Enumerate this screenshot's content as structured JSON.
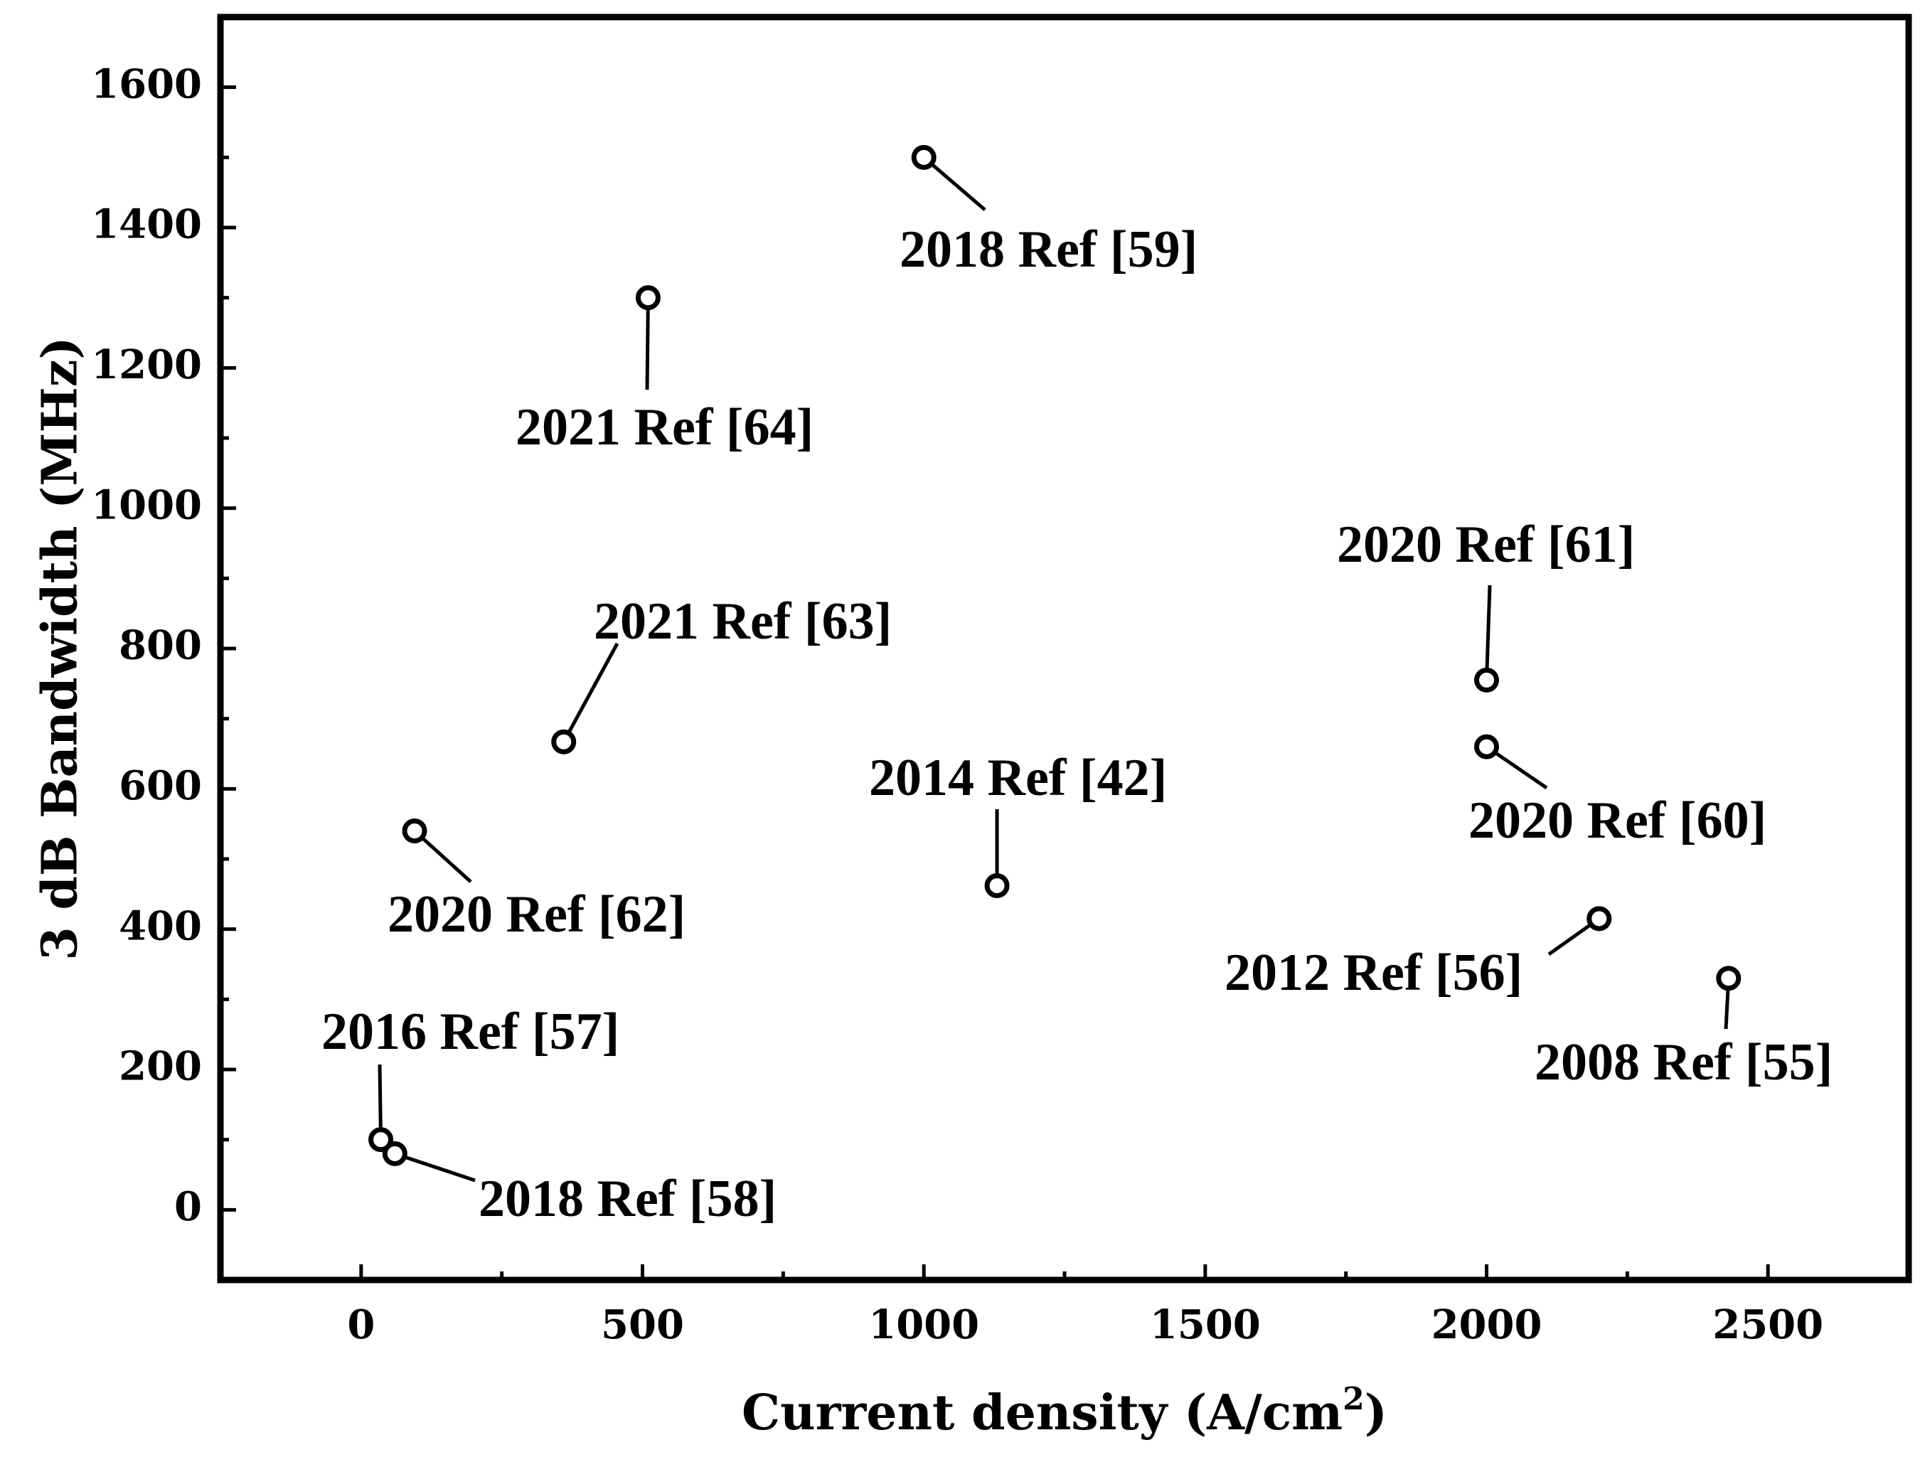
{
  "chart_data": {
    "type": "scatter",
    "title": "",
    "xlabel": "Current density (A/cm",
    "xlabel_superscript": "2",
    "xlabel_suffix": ")",
    "ylabel": "3 dB Bandwidth (MHz)",
    "xlim": [
      -250,
      2750
    ],
    "ylim": [
      -100,
      1700
    ],
    "xticks": [
      0,
      500,
      1000,
      1500,
      2000,
      2500
    ],
    "yticks": [
      0,
      200,
      400,
      600,
      800,
      1000,
      1200,
      1400,
      1600
    ],
    "grid": false,
    "legend": "none",
    "points": [
      {
        "label": "2018 Ref [59]",
        "x": 1000,
        "y": 1500
      },
      {
        "label": "2021 Ref [64]",
        "x": 510,
        "y": 1300
      },
      {
        "label": "2020 Ref [61]",
        "x": 2000,
        "y": 755
      },
      {
        "label": "2021 Ref [63]",
        "x": 360,
        "y": 667
      },
      {
        "label": "2020 Ref [60]",
        "x": 2000,
        "y": 660
      },
      {
        "label": "2020 Ref [62]",
        "x": 95,
        "y": 540
      },
      {
        "label": "2014 Ref [42]",
        "x": 1130,
        "y": 462
      },
      {
        "label": "2012 Ref [56]",
        "x": 2200,
        "y": 415
      },
      {
        "label": "2008 Ref [55]",
        "x": 2430,
        "y": 330
      },
      {
        "label": "2016 Ref [57]",
        "x": 35,
        "y": 100
      },
      {
        "label": "2018 Ref [58]",
        "x": 60,
        "y": 80
      }
    ]
  }
}
